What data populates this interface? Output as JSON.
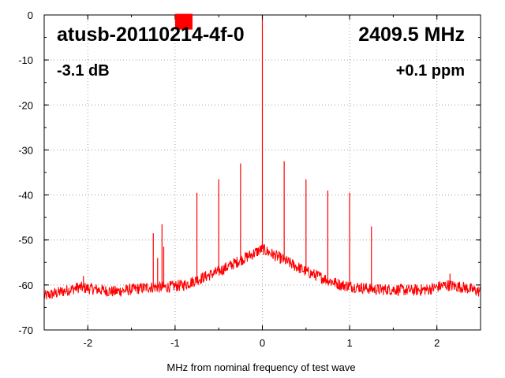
{
  "chart_data": {
    "type": "line",
    "xlabel": "MHz from nominal frequency of test wave",
    "ylabel": "",
    "xlim": [
      -2.5,
      2.5
    ],
    "ylim": [
      -70,
      0
    ],
    "x_ticks": [
      -2,
      -1,
      0,
      1,
      2
    ],
    "y_ticks": [
      0,
      -10,
      -20,
      -30,
      -40,
      -50,
      -60,
      -70
    ],
    "grid": "dotted",
    "color": "#ff0000",
    "annotations": {
      "device_label": "atusb-20110214-4f-0",
      "frequency": "2409.5 MHz",
      "power": "-3.1 dB",
      "offset": "+0.1 ppm"
    },
    "marker": {
      "x": -0.9,
      "y": -1.5,
      "color": "#ff0000"
    },
    "series": [
      {
        "noise_floor": {
          "x": [
            -2.5,
            -2.3,
            -2.1,
            -1.9,
            -1.7,
            -1.5,
            -1.3,
            -1.1,
            -0.9,
            -0.7,
            -0.5,
            -0.3,
            -0.1,
            0,
            0.1,
            0.3,
            0.5,
            0.7,
            0.9,
            1.1,
            1.3,
            1.5,
            1.7,
            1.9,
            2.1,
            2.3,
            2.5
          ],
          "y": [
            -62.5,
            -61.5,
            -60.5,
            -61,
            -61.5,
            -61,
            -60.5,
            -60.5,
            -60,
            -58.5,
            -57,
            -55,
            -53,
            -52,
            -53,
            -55,
            -57,
            -58.5,
            -60,
            -60.5,
            -61,
            -61,
            -61.2,
            -61,
            -60,
            -60.5,
            -61.5
          ]
        },
        "spikes": [
          {
            "x": 0.0,
            "y": 0
          },
          {
            "x": -1.25,
            "y": -48.5
          },
          {
            "x": -1.15,
            "y": -46.5
          },
          {
            "x": -1.13,
            "y": -51.5
          },
          {
            "x": -0.75,
            "y": -39.5
          },
          {
            "x": -0.5,
            "y": -36.5
          },
          {
            "x": -0.25,
            "y": -33
          },
          {
            "x": 0.25,
            "y": -32.5
          },
          {
            "x": 0.5,
            "y": -36.5
          },
          {
            "x": 0.75,
            "y": -39
          },
          {
            "x": 1.0,
            "y": -39.5
          },
          {
            "x": 1.25,
            "y": -47
          },
          {
            "x": -1.2,
            "y": -54
          },
          {
            "x": 2.15,
            "y": -57.5
          },
          {
            "x": -2.05,
            "y": -58
          }
        ]
      }
    ]
  }
}
